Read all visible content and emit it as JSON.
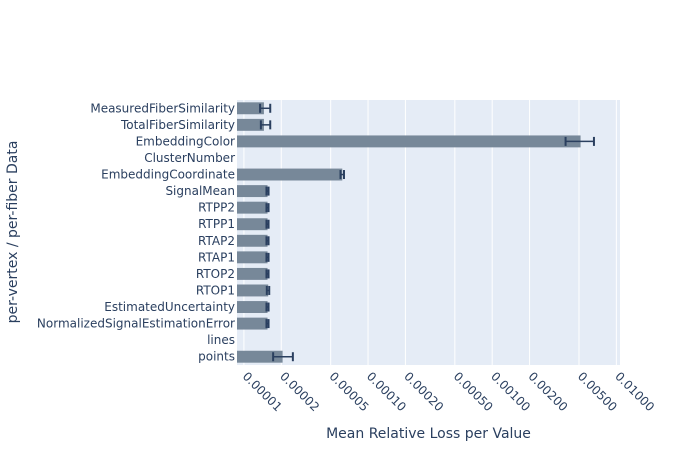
{
  "chart_data": {
    "type": "bar",
    "orientation": "horizontal",
    "xlabel": "Mean Relative Loss per Value",
    "ylabel": "per-vertex / per-fiber Data",
    "xscale": "log",
    "xlim": [
      8.8e-06,
      0.0107
    ],
    "grid": true,
    "bar_color": "#778899",
    "error_color": "#2a3f5f",
    "plot_bg": "#e5ecf6",
    "xticks": [
      "0.00001",
      "0.00002",
      "0.00005",
      "0.00010",
      "0.00020",
      "0.00050",
      "0.00100",
      "0.00200",
      "0.00500",
      "0.01000"
    ],
    "bars": [
      {
        "label": "MeasuredFiberSimilarity",
        "value": 1.45e-05,
        "err_low": 1.35e-05,
        "err_high": 1.63e-05
      },
      {
        "label": "TotalFiberSimilarity",
        "value": 1.45e-05,
        "err_low": 1.37e-05,
        "err_high": 1.63e-05
      },
      {
        "label": "EmbeddingColor",
        "value": 0.00515,
        "err_low": 0.0039,
        "err_high": 0.0066
      },
      {
        "label": "ClusterNumber",
        "value": null
      },
      {
        "label": "EmbeddingCoordinate",
        "value": 6.2e-05,
        "err_low": 6e-05,
        "err_high": 6.4e-05
      },
      {
        "label": "SignalMean",
        "value": 1.55e-05,
        "err_low": 1.52e-05,
        "err_high": 1.58e-05
      },
      {
        "label": "RTPP2",
        "value": 1.55e-05,
        "err_low": 1.52e-05,
        "err_high": 1.58e-05
      },
      {
        "label": "RTPP1",
        "value": 1.55e-05,
        "err_low": 1.52e-05,
        "err_high": 1.58e-05
      },
      {
        "label": "RTAP2",
        "value": 1.55e-05,
        "err_low": 1.52e-05,
        "err_high": 1.58e-05
      },
      {
        "label": "RTAP1",
        "value": 1.55e-05,
        "err_low": 1.52e-05,
        "err_high": 1.58e-05
      },
      {
        "label": "RTOP2",
        "value": 1.55e-05,
        "err_low": 1.52e-05,
        "err_high": 1.58e-05
      },
      {
        "label": "RTOP1",
        "value": 1.57e-05,
        "err_low": 1.53e-05,
        "err_high": 1.6e-05
      },
      {
        "label": "EstimatedUncertainty",
        "value": 1.55e-05,
        "err_low": 1.52e-05,
        "err_high": 1.58e-05
      },
      {
        "label": "NormalizedSignalEstimationError",
        "value": 1.55e-05,
        "err_low": 1.52e-05,
        "err_high": 1.58e-05
      },
      {
        "label": "lines",
        "value": null
      },
      {
        "label": "points",
        "value": 2.05e-05,
        "err_low": 1.72e-05,
        "err_high": 2.48e-05
      }
    ]
  }
}
